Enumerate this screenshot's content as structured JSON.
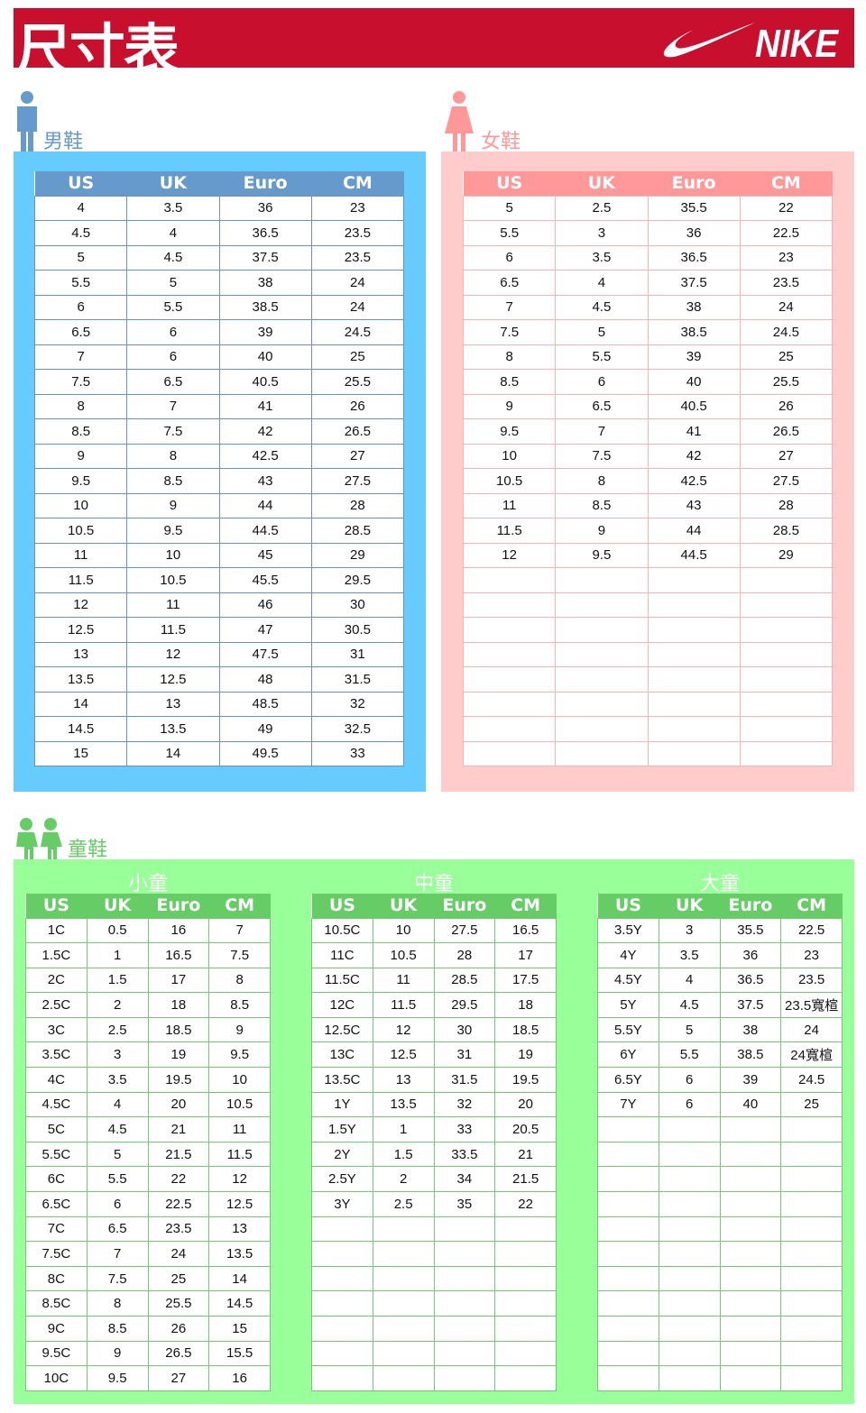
{
  "header": {
    "title": "尺寸表",
    "brand": "NIKE",
    "brand_color": "#c8102e"
  },
  "columns": [
    "US",
    "UK",
    "Euro",
    "CM"
  ],
  "men": {
    "label": "男鞋",
    "icon": "man-icon",
    "color": "#6699cc",
    "rows": [
      [
        "4",
        "3.5",
        "36",
        "23"
      ],
      [
        "4.5",
        "4",
        "36.5",
        "23.5"
      ],
      [
        "5",
        "4.5",
        "37.5",
        "23.5"
      ],
      [
        "5.5",
        "5",
        "38",
        "24"
      ],
      [
        "6",
        "5.5",
        "38.5",
        "24"
      ],
      [
        "6.5",
        "6",
        "39",
        "24.5"
      ],
      [
        "7",
        "6",
        "40",
        "25"
      ],
      [
        "7.5",
        "6.5",
        "40.5",
        "25.5"
      ],
      [
        "8",
        "7",
        "41",
        "26"
      ],
      [
        "8.5",
        "7.5",
        "42",
        "26.5"
      ],
      [
        "9",
        "8",
        "42.5",
        "27"
      ],
      [
        "9.5",
        "8.5",
        "43",
        "27.5"
      ],
      [
        "10",
        "9",
        "44",
        "28"
      ],
      [
        "10.5",
        "9.5",
        "44.5",
        "28.5"
      ],
      [
        "11",
        "10",
        "45",
        "29"
      ],
      [
        "11.5",
        "10.5",
        "45.5",
        "29.5"
      ],
      [
        "12",
        "11",
        "46",
        "30"
      ],
      [
        "12.5",
        "11.5",
        "47",
        "30.5"
      ],
      [
        "13",
        "12",
        "47.5",
        "31"
      ],
      [
        "13.5",
        "12.5",
        "48",
        "31.5"
      ],
      [
        "14",
        "13",
        "48.5",
        "32"
      ],
      [
        "14.5",
        "13.5",
        "49",
        "32.5"
      ],
      [
        "15",
        "14",
        "49.5",
        "33"
      ]
    ]
  },
  "women": {
    "label": "女鞋",
    "icon": "woman-icon",
    "color": "#ff9999",
    "rows": [
      [
        "5",
        "2.5",
        "35.5",
        "22"
      ],
      [
        "5.5",
        "3",
        "36",
        "22.5"
      ],
      [
        "6",
        "3.5",
        "36.5",
        "23"
      ],
      [
        "6.5",
        "4",
        "37.5",
        "23.5"
      ],
      [
        "7",
        "4.5",
        "38",
        "24"
      ],
      [
        "7.5",
        "5",
        "38.5",
        "24.5"
      ],
      [
        "8",
        "5.5",
        "39",
        "25"
      ],
      [
        "8.5",
        "6",
        "40",
        "25.5"
      ],
      [
        "9",
        "6.5",
        "40.5",
        "26"
      ],
      [
        "9.5",
        "7",
        "41",
        "26.5"
      ],
      [
        "10",
        "7.5",
        "42",
        "27"
      ],
      [
        "10.5",
        "8",
        "42.5",
        "27.5"
      ],
      [
        "11",
        "8.5",
        "43",
        "28"
      ],
      [
        "11.5",
        "9",
        "44",
        "28.5"
      ],
      [
        "12",
        "9.5",
        "44.5",
        "29"
      ]
    ]
  },
  "kids": {
    "label": "童鞋",
    "icon": "children-icon",
    "color": "#66cc66",
    "small": {
      "label": "小童",
      "rows": [
        [
          "1C",
          "0.5",
          "16",
          "7"
        ],
        [
          "1.5C",
          "1",
          "16.5",
          "7.5"
        ],
        [
          "2C",
          "1.5",
          "17",
          "8"
        ],
        [
          "2.5C",
          "2",
          "18",
          "8.5"
        ],
        [
          "3C",
          "2.5",
          "18.5",
          "9"
        ],
        [
          "3.5C",
          "3",
          "19",
          "9.5"
        ],
        [
          "4C",
          "3.5",
          "19.5",
          "10"
        ],
        [
          "4.5C",
          "4",
          "20",
          "10.5"
        ],
        [
          "5C",
          "4.5",
          "21",
          "11"
        ],
        [
          "5.5C",
          "5",
          "21.5",
          "11.5"
        ],
        [
          "6C",
          "5.5",
          "22",
          "12"
        ],
        [
          "6.5C",
          "6",
          "22.5",
          "12.5"
        ],
        [
          "7C",
          "6.5",
          "23.5",
          "13"
        ],
        [
          "7.5C",
          "7",
          "24",
          "13.5"
        ],
        [
          "8C",
          "7.5",
          "25",
          "14"
        ],
        [
          "8.5C",
          "8",
          "25.5",
          "14.5"
        ],
        [
          "9C",
          "8.5",
          "26",
          "15"
        ],
        [
          "9.5C",
          "9",
          "26.5",
          "15.5"
        ],
        [
          "10C",
          "9.5",
          "27",
          "16"
        ]
      ]
    },
    "middle": {
      "label": "中童",
      "rows": [
        [
          "10.5C",
          "10",
          "27.5",
          "16.5"
        ],
        [
          "11C",
          "10.5",
          "28",
          "17"
        ],
        [
          "11.5C",
          "11",
          "28.5",
          "17.5"
        ],
        [
          "12C",
          "11.5",
          "29.5",
          "18"
        ],
        [
          "12.5C",
          "12",
          "30",
          "18.5"
        ],
        [
          "13C",
          "12.5",
          "31",
          "19"
        ],
        [
          "13.5C",
          "13",
          "31.5",
          "19.5"
        ],
        [
          "1Y",
          "13.5",
          "32",
          "20"
        ],
        [
          "1.5Y",
          "1",
          "33",
          "20.5"
        ],
        [
          "2Y",
          "1.5",
          "33.5",
          "21"
        ],
        [
          "2.5Y",
          "2",
          "34",
          "21.5"
        ],
        [
          "3Y",
          "2.5",
          "35",
          "22"
        ]
      ]
    },
    "big": {
      "label": "大童",
      "rows": [
        [
          "3.5Y",
          "3",
          "35.5",
          "22.5"
        ],
        [
          "4Y",
          "3.5",
          "36",
          "23"
        ],
        [
          "4.5Y",
          "4",
          "36.5",
          "23.5"
        ],
        [
          "5Y",
          "4.5",
          "37.5",
          "23.5寬楦"
        ],
        [
          "5.5Y",
          "5",
          "38",
          "24"
        ],
        [
          "6Y",
          "5.5",
          "38.5",
          "24寬楦"
        ],
        [
          "6.5Y",
          "6",
          "39",
          "24.5"
        ],
        [
          "7Y",
          "6",
          "40",
          "25"
        ]
      ]
    }
  }
}
